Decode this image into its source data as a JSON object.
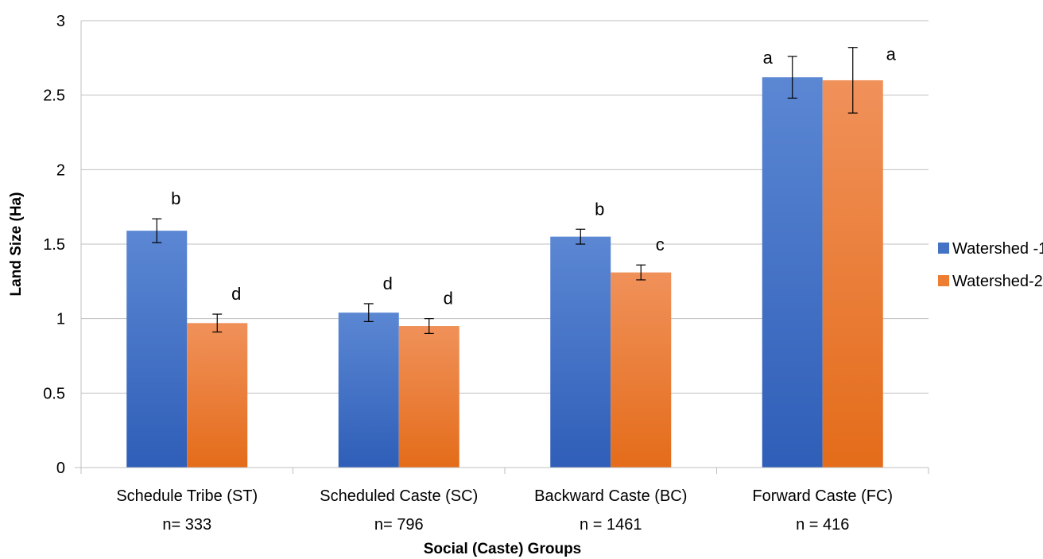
{
  "chart_data": {
    "type": "bar",
    "xlabel": "Social (Caste) Groups",
    "ylabel": "Land Size (Ha)",
    "ylim": [
      0,
      3
    ],
    "yticks": [
      0,
      0.5,
      1,
      1.5,
      2,
      2.5,
      3
    ],
    "ytick_labels": [
      "0",
      "0.5",
      "1",
      "1.5",
      "2",
      "2.5",
      "3"
    ],
    "grid": "horizontal",
    "legend_position": "right",
    "categories": [
      {
        "name": "Schedule Tribe (ST)",
        "n": "n= 333"
      },
      {
        "name": "Scheduled Caste (SC)",
        "n": "n= 796"
      },
      {
        "name": "Backward Caste (BC)",
        "n": "n = 1461"
      },
      {
        "name": "Forward Caste (FC)",
        "n": "n = 416"
      }
    ],
    "series": [
      {
        "name": "Watershed -1",
        "color": "#4472C4",
        "color_light": "#5B87D3",
        "color_dark": "#2F5EB8",
        "values": [
          1.59,
          1.04,
          1.55,
          2.62
        ],
        "errors": [
          0.08,
          0.06,
          0.05,
          0.14
        ],
        "sig_labels": [
          "b",
          "d",
          "b",
          "a"
        ]
      },
      {
        "name": "Watershed-2",
        "color": "#ED7D31",
        "color_light": "#F0915A",
        "color_dark": "#E46C1A",
        "values": [
          0.97,
          0.95,
          1.31,
          2.6
        ],
        "errors": [
          0.06,
          0.05,
          0.05,
          0.22
        ],
        "sig_labels": [
          "d",
          "d",
          "c",
          "a"
        ]
      }
    ]
  }
}
